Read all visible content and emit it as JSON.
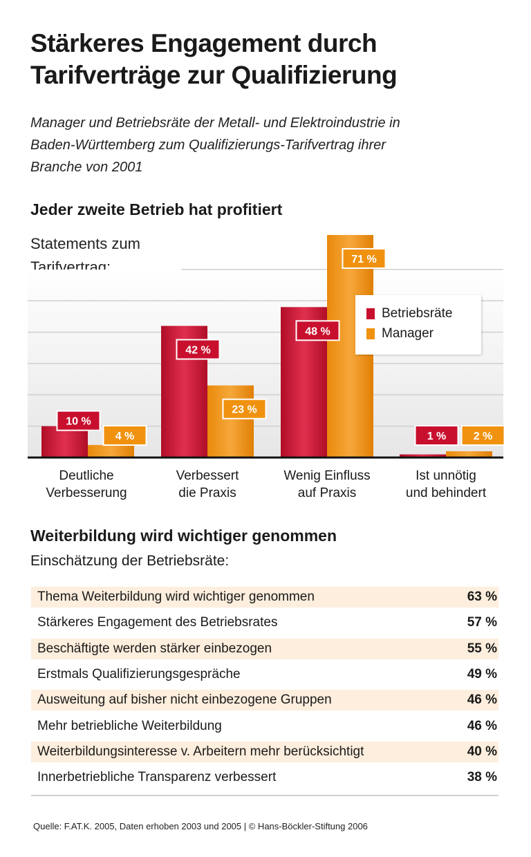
{
  "title_lines": [
    "Stärkeres Engagement durch",
    "Tarifverträge zur Qualifizierung"
  ],
  "subtitle_lines": [
    "Manager und Betriebsräte der Metall- und Elektroindustrie in",
    "Baden-Württemberg zum Qualifizierungs-Tarifvertrag ihrer",
    "Branche von 2001"
  ],
  "chart_data": {
    "type": "bar",
    "title": "Jeder zweite Betrieb hat profitiert",
    "subtitle_lines": [
      "Statements zum",
      "Tarifvertrag:"
    ],
    "categories": [
      [
        "Deutliche",
        "Verbesserung"
      ],
      [
        "Verbessert",
        "die Praxis"
      ],
      [
        "Wenig Einfluss",
        "auf Praxis"
      ],
      [
        "Ist unnötig",
        "und behindert"
      ]
    ],
    "series": [
      {
        "name": "Betriebsräte",
        "values": [
          10,
          42,
          48,
          1
        ],
        "labels": [
          "10 %",
          "42 %",
          "48 %",
          "1 %"
        ],
        "color": "#c8102e"
      },
      {
        "name": "Manager",
        "values": [
          4,
          23,
          71,
          2
        ],
        "labels": [
          "4 %",
          "23 %",
          "71 %",
          "2 %"
        ],
        "color": "#f0920f"
      }
    ],
    "ylim": [
      0,
      71
    ],
    "grid": true,
    "legend": "top-right",
    "unit": "%"
  },
  "section2": {
    "title": "Weiterbildung wird wichtiger genommen",
    "subtitle": "Einschätzung der Betriebsräte:",
    "shade_color": "#fdeedd",
    "rows": [
      {
        "label": "Thema Weiterbildung wird wichtiger genommen",
        "value": "63 %"
      },
      {
        "label": "Stärkeres Engagement des Betriebsrates",
        "value": "57 %"
      },
      {
        "label": "Beschäftigte werden stärker einbezogen",
        "value": "55 %"
      },
      {
        "label": "Erstmals Qualifizierungsgespräche",
        "value": "49 %"
      },
      {
        "label": "Ausweitung auf bisher nicht einbezogene Gruppen",
        "value": "46 %"
      },
      {
        "label": "Mehr betriebliche Weiterbildung",
        "value": "46 %"
      },
      {
        "label": "Weiterbildungsinteresse v. Arbeitern mehr berücksichtigt",
        "value": "40 %"
      },
      {
        "label": "Innerbetriebliche Transparenz verbessert",
        "value": "38 %"
      }
    ]
  },
  "source": "Quelle: F.AT.K. 2005, Daten erhoben 2003 und 2005 | © Hans-Böckler-Stiftung 2006"
}
